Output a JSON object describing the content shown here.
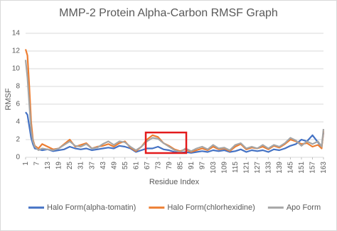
{
  "chart_data": {
    "type": "line",
    "title": "MMP-2 Protein Alpha-Carbon RMSF Graph",
    "x_label": "Residue Index",
    "y_label": "RMSF",
    "x": [
      1,
      2,
      3,
      4,
      5,
      6,
      8,
      10,
      13,
      16,
      19,
      22,
      25,
      28,
      31,
      34,
      37,
      40,
      43,
      46,
      49,
      52,
      55,
      58,
      61,
      64,
      67,
      70,
      73,
      76,
      79,
      82,
      85,
      88,
      91,
      94,
      97,
      100,
      103,
      106,
      109,
      112,
      115,
      118,
      121,
      124,
      127,
      130,
      133,
      136,
      139,
      142,
      145,
      148,
      151,
      154,
      157,
      160,
      162,
      163
    ],
    "series": [
      {
        "name": "Halo Form(alpha-tomatin)",
        "color": "#4472c4",
        "values": [
          5.1,
          4.8,
          3.5,
          2.2,
          1.5,
          1.0,
          0.9,
          0.8,
          0.9,
          0.7,
          0.8,
          0.9,
          1.2,
          1.0,
          0.9,
          1.0,
          0.8,
          0.9,
          1.0,
          1.1,
          1.0,
          1.3,
          1.2,
          1.0,
          0.6,
          0.8,
          1.0,
          1.0,
          1.2,
          0.9,
          0.8,
          0.6,
          0.5,
          0.6,
          0.5,
          0.6,
          0.7,
          0.6,
          0.8,
          0.7,
          0.8,
          0.6,
          0.7,
          0.9,
          0.6,
          0.8,
          0.7,
          0.8,
          0.6,
          0.9,
          0.8,
          1.0,
          1.3,
          1.5,
          2.0,
          1.8,
          2.5,
          1.7,
          1.2,
          2.8
        ]
      },
      {
        "name": "Halo Form(chlorhexidine)",
        "color": "#ed7d31",
        "values": [
          12.2,
          11.5,
          8,
          4,
          2,
          1.3,
          1.0,
          1.5,
          1.2,
          0.9,
          1.0,
          1.5,
          2.0,
          1.2,
          1.4,
          1.6,
          1.0,
          1.2,
          1.3,
          1.5,
          1.2,
          1.6,
          1.8,
          1.1,
          0.7,
          1.2,
          2.0,
          2.5,
          2.3,
          1.6,
          1.3,
          0.9,
          0.7,
          0.9,
          0.6,
          0.8,
          1.0,
          0.8,
          1.2,
          0.9,
          1.0,
          0.7,
          1.2,
          1.5,
          0.9,
          1.1,
          1.0,
          1.2,
          0.9,
          1.3,
          1.1,
          1.5,
          2.0,
          1.8,
          1.5,
          1.6,
          1.2,
          1.4,
          1.0,
          3.0
        ]
      },
      {
        "name": "Apo Form",
        "color": "#a5a5a5",
        "values": [
          11.0,
          9,
          6,
          3,
          1.8,
          1.2,
          0.8,
          1.0,
          0.9,
          0.8,
          1.0,
          1.4,
          1.8,
          1.3,
          1.2,
          1.5,
          1.0,
          1.1,
          1.5,
          1.8,
          1.4,
          1.8,
          1.7,
          1.2,
          0.8,
          1.2,
          1.8,
          2.2,
          2.1,
          1.6,
          1.2,
          0.8,
          0.6,
          1.0,
          0.7,
          1.0,
          1.2,
          0.9,
          1.4,
          1.0,
          1.1,
          0.8,
          1.4,
          1.6,
          1.0,
          1.2,
          1.0,
          1.4,
          1.0,
          1.4,
          1.2,
          1.6,
          2.2,
          1.9,
          1.3,
          1.8,
          1.5,
          1.8,
          1.2,
          3.2
        ]
      }
    ],
    "xlim": [
      1,
      163
    ],
    "xticks": [
      1,
      7,
      13,
      19,
      25,
      31,
      37,
      43,
      49,
      55,
      61,
      67,
      73,
      79,
      85,
      91,
      97,
      103,
      109,
      115,
      121,
      127,
      133,
      139,
      145,
      151,
      157,
      163
    ],
    "ylim": [
      0,
      14
    ],
    "yticks": [
      0,
      2,
      4,
      6,
      8,
      10,
      12,
      14
    ],
    "grid": true,
    "legend": "bottom"
  }
}
